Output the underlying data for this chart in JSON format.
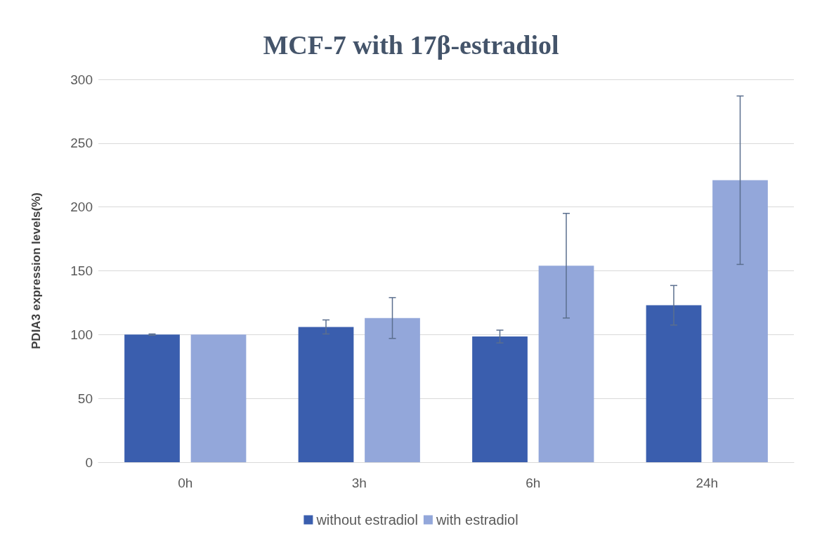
{
  "chart_data": {
    "type": "bar",
    "title": "MCF-7 with 17β-estradiol",
    "ylabel": "PDIA3 expression levels(%)",
    "categories": [
      "0h",
      "3h",
      "6h",
      "24h"
    ],
    "series": [
      {
        "name": "without estradiol",
        "color": "#3a5eae",
        "values": [
          100,
          106,
          98.5,
          123
        ],
        "errors": [
          0.5,
          5.5,
          5,
          15.5
        ]
      },
      {
        "name": "with estradiol",
        "color": "#93a7da",
        "values": [
          100,
          113,
          154,
          221
        ],
        "errors": [
          null,
          16,
          41,
          66
        ]
      }
    ],
    "ylim": [
      0,
      300
    ],
    "yticks": [
      0,
      50,
      100,
      150,
      200,
      250,
      300
    ],
    "grid": "y",
    "legend": "bottom"
  }
}
